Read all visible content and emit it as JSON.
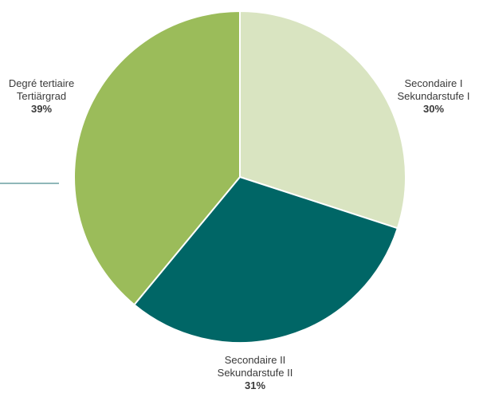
{
  "chart_data": {
    "type": "pie",
    "start_angle_deg": 0,
    "direction": "clockwise",
    "slices": [
      {
        "label_fr": "Secondaire I",
        "label_de": "Sekundarstufe I",
        "value": 30,
        "value_label": "30%",
        "color": "#d9e4c1"
      },
      {
        "label_fr": "Secondaire II",
        "label_de": "Sekundarstufe II",
        "value": 31,
        "value_label": "31%",
        "color": "#006666"
      },
      {
        "label_fr": "Degré tertiaire",
        "label_de": "Tertiärgrad",
        "value": 39,
        "value_label": "39%",
        "color": "#9bbc5a"
      }
    ],
    "legend": "none"
  },
  "colors": {
    "slice_border": "#ffffff",
    "text": "#3a3a3a",
    "rule_line": "#1f6f73"
  }
}
